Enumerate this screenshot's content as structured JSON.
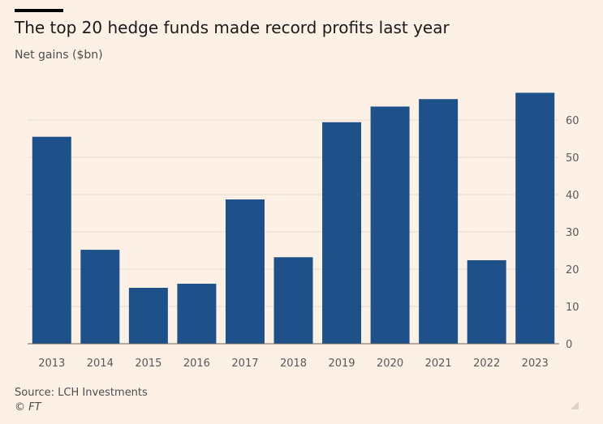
{
  "title": "The top 20 hedge funds made record profits last year",
  "subtitle": "Net gains ($bn)",
  "source": "Source: LCH Investments",
  "copyright": "© FT",
  "colors": {
    "bar": "#1e5189",
    "background": "#fdf1e6",
    "grid": "#e6d9cc"
  },
  "icons": {
    "corner": "resize-corner-icon"
  },
  "chart_data": {
    "type": "bar",
    "categories": [
      "2013",
      "2014",
      "2015",
      "2016",
      "2017",
      "2018",
      "2019",
      "2020",
      "2021",
      "2022",
      "2023"
    ],
    "values": [
      55.5,
      25.2,
      15.0,
      16.1,
      38.7,
      23.2,
      59.4,
      63.6,
      65.6,
      22.4,
      67.3
    ],
    "title": "The top 20 hedge funds made record profits last year",
    "ylabel": "Net gains ($bn)",
    "xlabel": "",
    "ylim": [
      0,
      70
    ],
    "yticks": [
      0,
      10,
      20,
      30,
      40,
      50,
      60
    ],
    "y_axis_side": "right",
    "grid": true,
    "legend": "none"
  }
}
